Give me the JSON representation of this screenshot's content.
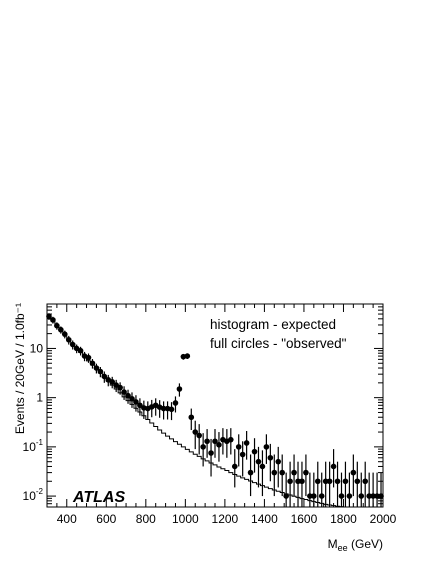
{
  "chart_data": {
    "type": "scatter",
    "ylabel": "Events / 20GeV / 1.0fb⁻¹",
    "xlabel": {
      "main": "M",
      "sub": "ee",
      "unit": " (GeV)"
    },
    "annotations": [
      "histogram - expected",
      "full circles - \"observed\""
    ],
    "logo": "ATLAS",
    "xlim": [
      300,
      2000
    ],
    "ylim": [
      0.006,
      80
    ],
    "yscale": "log",
    "x_ticks": [
      400,
      600,
      800,
      1000,
      1200,
      1400,
      1600,
      1800,
      2000
    ],
    "x_tick_labels": [
      "400",
      "600",
      "800",
      "1000",
      "1200",
      "1400",
      "1600",
      "1800",
      "2000"
    ],
    "y_ticks": [
      0.01,
      0.1,
      1,
      10
    ],
    "y_tick_labels": [
      {
        "base": "10",
        "exp": "-2"
      },
      {
        "base": "10",
        "exp": "-1"
      },
      {
        "base": "1",
        "exp": ""
      },
      {
        "base": "10",
        "exp": ""
      }
    ],
    "series": [
      {
        "kind": "histogram",
        "x": [
          310,
          330,
          350,
          370,
          390,
          410,
          430,
          450,
          470,
          490,
          510,
          530,
          550,
          570,
          590,
          610,
          630,
          650,
          670,
          690,
          710,
          730,
          750,
          770,
          790,
          810,
          830,
          850,
          870,
          890,
          910,
          930,
          950,
          970,
          990,
          1010,
          1030,
          1050,
          1070,
          1090,
          1110,
          1130,
          1150,
          1170,
          1190,
          1210,
          1230,
          1250,
          1270,
          1290,
          1310,
          1330,
          1350,
          1370,
          1390,
          1410,
          1430,
          1450,
          1470,
          1490,
          1510,
          1530,
          1550,
          1570,
          1590,
          1610,
          1630,
          1650,
          1670,
          1690,
          1710,
          1730,
          1750,
          1770,
          1790,
          1810,
          1830,
          1850,
          1870,
          1890,
          1910,
          1930,
          1950,
          1970,
          1990
        ],
        "values": [
          44,
          36,
          29,
          23.5,
          19,
          15.5,
          12.5,
          10.2,
          8.3,
          6.8,
          5.6,
          4.6,
          3.8,
          3.15,
          2.6,
          2.15,
          1.8,
          1.5,
          1.25,
          1.04,
          0.87,
          0.73,
          0.61,
          0.51,
          0.43,
          0.36,
          0.305,
          0.26,
          0.22,
          0.19,
          0.165,
          0.145,
          0.128,
          0.113,
          0.1,
          0.089,
          0.079,
          0.071,
          0.064,
          0.057,
          0.052,
          0.047,
          0.043,
          0.039,
          0.036,
          0.033,
          0.03,
          0.0275,
          0.0255,
          0.0235,
          0.0218,
          0.0202,
          0.0188,
          0.0175,
          0.0163,
          0.0152,
          0.0142,
          0.0133,
          0.0125,
          0.0118,
          0.0111,
          0.0105,
          0.0099,
          0.0094,
          0.0089,
          0.0085,
          0.0081,
          0.0077,
          0.0074,
          0.0071,
          0.0068,
          0.0066,
          0.0064,
          0.0062,
          0.0061,
          0.006,
          0.0059,
          0.0058,
          0.0058,
          0.0057,
          0.0057,
          0.0057,
          0.0057,
          0.0057,
          0.0057
        ]
      },
      {
        "kind": "points",
        "x": [
          310,
          330,
          350,
          370,
          390,
          410,
          430,
          450,
          470,
          490,
          510,
          530,
          550,
          570,
          590,
          610,
          630,
          650,
          670,
          690,
          710,
          730,
          750,
          770,
          790,
          810,
          830,
          850,
          870,
          890,
          910,
          930,
          950,
          970,
          990,
          1010,
          1030,
          1050,
          1070,
          1090,
          1110,
          1130,
          1150,
          1170,
          1190,
          1210,
          1230,
          1250,
          1270,
          1290,
          1310,
          1330,
          1350,
          1370,
          1390,
          1410,
          1430,
          1450,
          1470,
          1490,
          1510,
          1530,
          1550,
          1570,
          1590,
          1610,
          1630,
          1650,
          1670,
          1690,
          1710,
          1730,
          1750,
          1770,
          1790,
          1810,
          1830,
          1850,
          1870,
          1890,
          1910,
          1930,
          1950,
          1970,
          1990
        ],
        "values": [
          45,
          38,
          29,
          24,
          19.5,
          15,
          12,
          10,
          9,
          7,
          6.5,
          5,
          4,
          3.4,
          2.7,
          2.3,
          2.1,
          1.8,
          1.6,
          1.3,
          1.1,
          0.95,
          0.82,
          0.7,
          0.62,
          0.6,
          0.65,
          0.7,
          0.64,
          0.6,
          0.6,
          0.58,
          0.78,
          1.5,
          6.8,
          7,
          0.4,
          0.2,
          0.17,
          0.1,
          0.13,
          0.075,
          0.13,
          0.11,
          0.14,
          0.13,
          0.14,
          0.04,
          0.1,
          0.07,
          0.12,
          0.03,
          0.08,
          0.05,
          0.04,
          0.1,
          0.06,
          0.03,
          0.05,
          0.03,
          0.01,
          0.02,
          0.03,
          0.02,
          0.02,
          0.03,
          0.01,
          0.01,
          0.02,
          0.01,
          0.02,
          0.02,
          0.04,
          0.02,
          0.01,
          0.02,
          0.01,
          0.03,
          0.02,
          0.01,
          0.02,
          0.01,
          0.01,
          0.01,
          0.01
        ],
        "errors_lo": [
          7,
          6,
          5,
          4,
          3.5,
          3,
          2.5,
          2,
          1.8,
          1.5,
          1.4,
          1.1,
          0.9,
          0.8,
          0.7,
          0.6,
          0.55,
          0.5,
          0.45,
          0.4,
          0.35,
          0.33,
          0.3,
          0.27,
          0.25,
          0.24,
          0.25,
          0.27,
          0.25,
          0.24,
          0.24,
          0.23,
          0.28,
          0.45,
          0.9,
          0.9,
          0.18,
          0.11,
          0.1,
          0.06,
          0.07,
          0.05,
          0.07,
          0.06,
          0.07,
          0.07,
          0.07,
          0.025,
          0.06,
          0.045,
          0.065,
          0.02,
          0.05,
          0.035,
          0.03,
          0.055,
          0.04,
          0.02,
          0.035,
          0.02,
          0.007,
          0.014,
          0.02,
          0.014,
          0.014,
          0.02,
          0.007,
          0.007,
          0.014,
          0.007,
          0.014,
          0.014,
          0.025,
          0.014,
          0.007,
          0.014,
          0.007,
          0.02,
          0.014,
          0.007,
          0.014,
          0.007,
          0.007,
          0.007,
          0.007
        ],
        "errors_hi": [
          7,
          6,
          5,
          4,
          3.5,
          3,
          2.5,
          2,
          1.8,
          1.5,
          1.4,
          1.1,
          0.9,
          0.8,
          0.7,
          0.6,
          0.55,
          0.5,
          0.45,
          0.4,
          0.35,
          0.33,
          0.3,
          0.27,
          0.25,
          0.24,
          0.25,
          0.27,
          0.25,
          0.24,
          0.24,
          0.23,
          0.28,
          0.45,
          0.9,
          0.9,
          0.2,
          0.14,
          0.12,
          0.09,
          0.1,
          0.07,
          0.1,
          0.09,
          0.1,
          0.1,
          0.1,
          0.05,
          0.08,
          0.06,
          0.09,
          0.04,
          0.07,
          0.05,
          0.045,
          0.08,
          0.055,
          0.04,
          0.05,
          0.04,
          0.02,
          0.03,
          0.04,
          0.03,
          0.03,
          0.04,
          0.02,
          0.02,
          0.03,
          0.02,
          0.03,
          0.03,
          0.05,
          0.03,
          0.02,
          0.03,
          0.02,
          0.04,
          0.03,
          0.02,
          0.03,
          0.02,
          0.02,
          0.02,
          0.02
        ]
      }
    ]
  }
}
